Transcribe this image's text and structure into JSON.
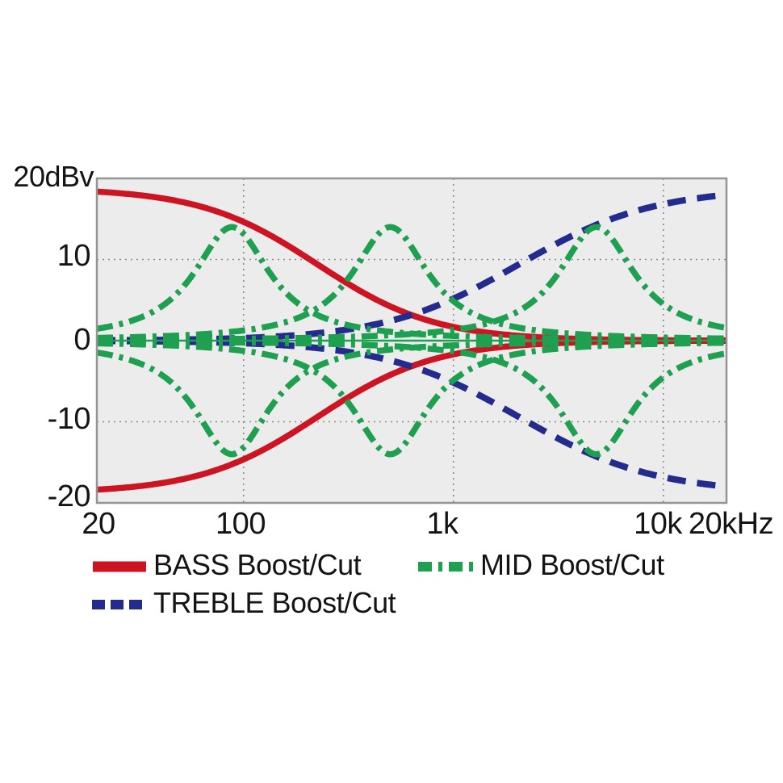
{
  "figure": {
    "background": "#ffffff",
    "plot_background": "#ececec",
    "border_color": "#949494",
    "grid_color": "#8a8a8a",
    "text_color": "#141414"
  },
  "chart_data": {
    "type": "line",
    "title": "",
    "description": "Tone control (EQ) frequency response: boost and cut ranges for BASS, MID and TREBLE controls",
    "x_axis": {
      "scale": "log",
      "unit": "Hz",
      "min_hz": 20,
      "max_hz": 20000,
      "grid_hz": [
        100,
        1000,
        10000
      ],
      "ticks": [
        {
          "label": "20",
          "hz": 20
        },
        {
          "label": "100",
          "hz": 100
        },
        {
          "label": "1k",
          "hz": 1000
        },
        {
          "label": "10k",
          "hz": 10000
        },
        {
          "label": "20kHz",
          "hz": 20000
        }
      ]
    },
    "y_axis": {
      "unit": "dBv",
      "min": -20,
      "max": 20,
      "top_label": "20dBv",
      "grid_db": [
        10,
        0,
        -10
      ],
      "ticks": [
        {
          "label": "10",
          "db": 10
        },
        {
          "label": "0",
          "db": 0
        },
        {
          "label": "-10",
          "db": -10
        },
        {
          "label": "-20",
          "db": -20
        }
      ]
    },
    "sample_freqs_hz": [
      20,
      50,
      100,
      200,
      500,
      1000,
      2000,
      5000,
      10000,
      20000
    ],
    "series": [
      {
        "name": "BASS max boost",
        "group": "BASS",
        "color": "#cd1422",
        "style": "solid",
        "model": {
          "type": "low_shelf",
          "gain_db": 18.8,
          "fc_hz": 225,
          "slope": 1.55
        },
        "points_db": [
          18.4,
          17.1,
          14.6,
          10.3,
          4.2,
          1.7,
          0.6,
          0.2,
          0.1,
          0.0
        ]
      },
      {
        "name": "BASS max cut",
        "group": "BASS",
        "color": "#cd1422",
        "style": "solid",
        "model": {
          "type": "low_shelf",
          "gain_db": -18.8,
          "fc_hz": 225,
          "slope": 1.55
        },
        "points_db": [
          -18.4,
          -17.1,
          -14.6,
          -10.3,
          -4.2,
          -1.7,
          -0.6,
          -0.2,
          -0.1,
          0.0
        ]
      },
      {
        "name": "TREBLE max boost",
        "group": "TREBLE",
        "color": "#232b8c",
        "style": "dashed",
        "model": {
          "type": "high_shelf",
          "gain_db": 18.8,
          "fc_hz": 2050,
          "slope": 1.35
        },
        "points_db": [
          0.0,
          0.1,
          0.3,
          0.8,
          2.4,
          5.2,
          9.2,
          14.5,
          16.8,
          18.0
        ]
      },
      {
        "name": "TREBLE max cut",
        "group": "TREBLE",
        "color": "#232b8c",
        "style": "dashed",
        "model": {
          "type": "high_shelf",
          "gain_db": -18.8,
          "fc_hz": 2050,
          "slope": 1.35
        },
        "points_db": [
          0.0,
          -0.1,
          -0.3,
          -0.8,
          -2.4,
          -5.2,
          -9.2,
          -14.5,
          -16.8,
          -18.0
        ]
      },
      {
        "name": "MID max boost @90Hz",
        "group": "MID",
        "color": "#1ea050",
        "style": "dashdot",
        "model": {
          "type": "peak",
          "gain_db": 14,
          "f0_hz": 88,
          "width_log": 0.22
        },
        "points_db": [
          1.5,
          6.2,
          13.2,
          3.9,
          1.1,
          0.6,
          0.3,
          0.2,
          0.1,
          0.1
        ]
      },
      {
        "name": "MID max cut @90Hz",
        "group": "MID",
        "color": "#1ea050",
        "style": "dashdot",
        "model": {
          "type": "peak",
          "gain_db": -14,
          "f0_hz": 88,
          "width_log": 0.22
        },
        "points_db": [
          -1.5,
          -6.2,
          -13.2,
          -3.9,
          -1.1,
          -0.6,
          -0.3,
          -0.2,
          -0.1,
          -0.1
        ]
      },
      {
        "name": "MID max boost @500Hz",
        "group": "MID",
        "color": "#1ea050",
        "style": "dashdot",
        "model": {
          "type": "peak",
          "gain_db": 14,
          "f0_hz": 500,
          "width_log": 0.22
        },
        "points_db": [
          0.3,
          0.6,
          1.3,
          3.3,
          14.0,
          4.9,
          1.7,
          0.7,
          0.4,
          0.3
        ]
      },
      {
        "name": "MID max cut @500Hz",
        "group": "MID",
        "color": "#1ea050",
        "style": "dashdot",
        "model": {
          "type": "peak",
          "gain_db": -14,
          "f0_hz": 500,
          "width_log": 0.22
        },
        "points_db": [
          -0.3,
          -0.6,
          -1.3,
          -3.3,
          -14.0,
          -4.9,
          -1.7,
          -0.7,
          -0.4,
          -0.3
        ]
      },
      {
        "name": "MID max boost @4.8kHz",
        "group": "MID",
        "color": "#1ea050",
        "style": "dashdot",
        "model": {
          "type": "peak",
          "gain_db": 14,
          "f0_hz": 4800,
          "width_log": 0.22
        },
        "points_db": [
          0.1,
          0.2,
          0.2,
          0.4,
          0.7,
          1.4,
          3.5,
          13.9,
          4.5,
          1.6
        ]
      },
      {
        "name": "MID max cut @4.8kHz",
        "group": "MID",
        "color": "#1ea050",
        "style": "dashdot",
        "model": {
          "type": "peak",
          "gain_db": -14,
          "f0_hz": 4800,
          "width_log": 0.22
        },
        "points_db": [
          -0.1,
          -0.2,
          -0.2,
          -0.4,
          -0.7,
          -1.4,
          -3.5,
          -13.9,
          -4.5,
          -1.6
        ]
      },
      {
        "name": "MID flat (0 dB)",
        "group": "MID",
        "color": "#1ea050",
        "style": "thin_solid",
        "model": {
          "type": "flat",
          "gain_db": 0
        },
        "points_db": [
          0,
          0,
          0,
          0,
          0,
          0,
          0,
          0,
          0,
          0
        ]
      }
    ],
    "legend": [
      {
        "label": "BASS Boost/Cut",
        "color": "#cd1422",
        "style": "solid"
      },
      {
        "label": "MID Boost/Cut",
        "color": "#1ea050",
        "style": "dashdot"
      },
      {
        "label": "TREBLE Boost/Cut",
        "color": "#232b8c",
        "style": "dashed"
      }
    ],
    "legend_position": "below"
  }
}
